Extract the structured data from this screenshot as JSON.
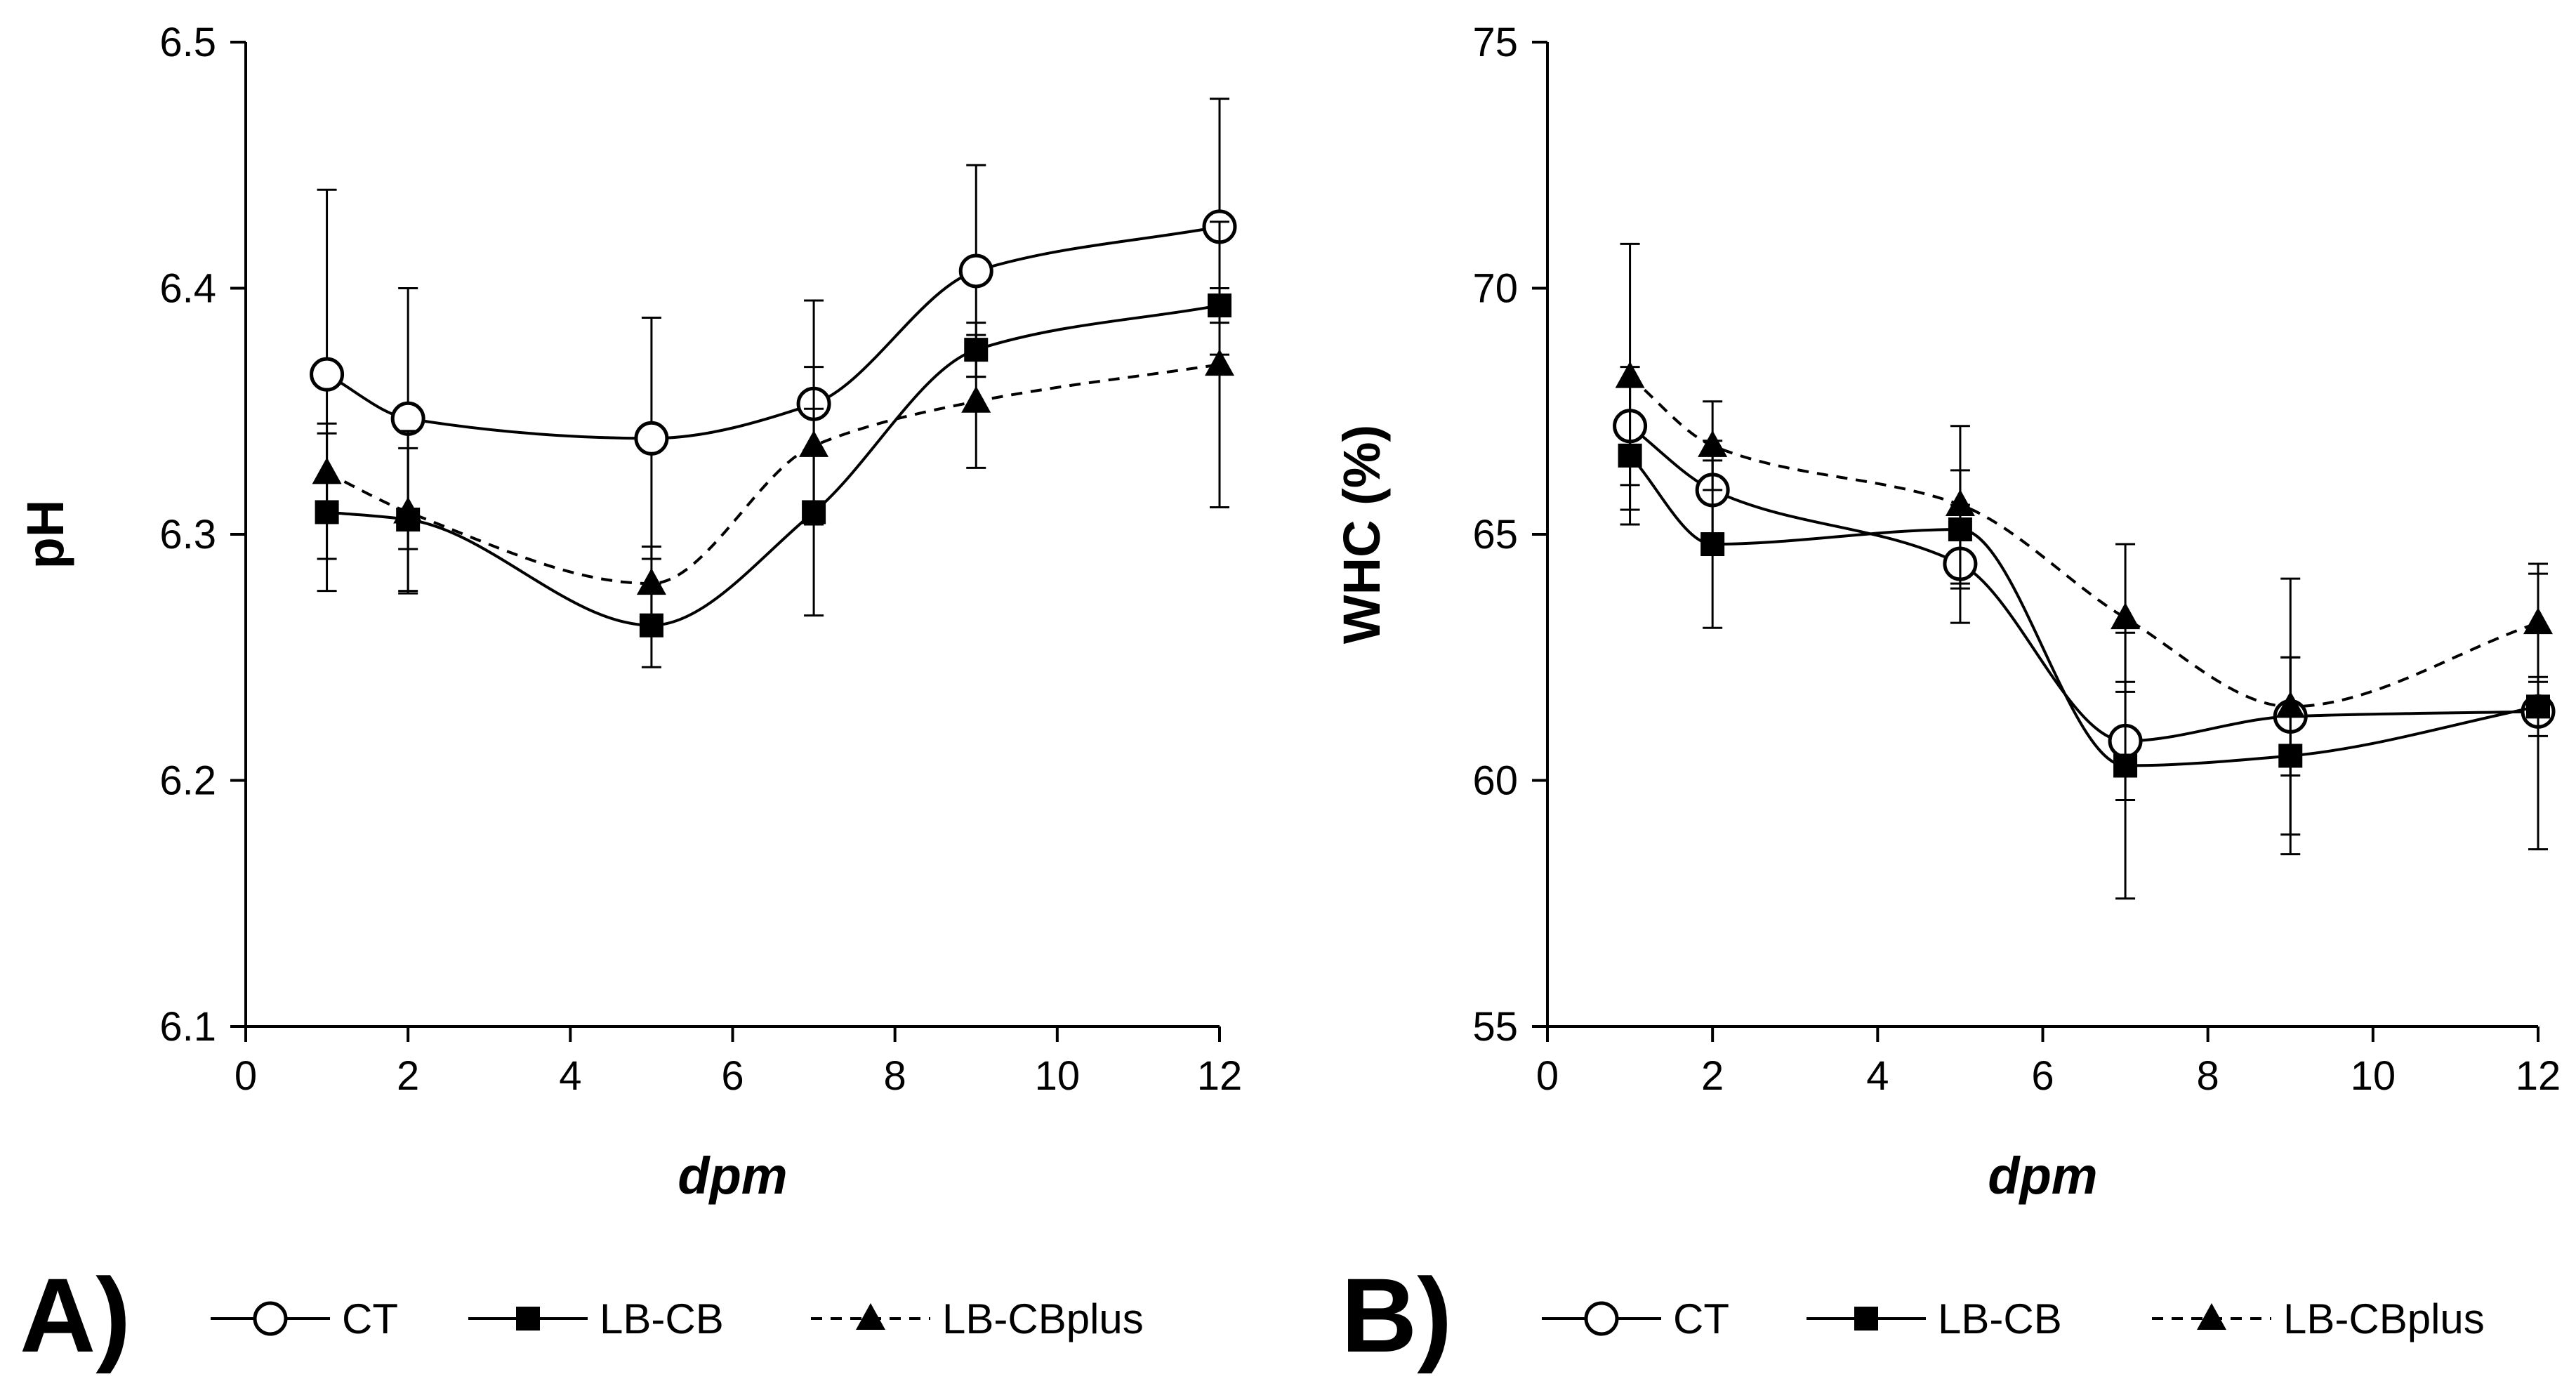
{
  "chart_data": [
    {
      "type": "line",
      "panel_label": "A)",
      "xlabel": "dpm",
      "ylabel": "pH",
      "xlim": [
        0,
        12
      ],
      "ylim": [
        6.1,
        6.5
      ],
      "xticks": [
        0,
        2,
        4,
        6,
        8,
        10,
        12
      ],
      "yticks": [
        6.1,
        6.2,
        6.3,
        6.4,
        6.5
      ],
      "x_tick_labels": [
        "0",
        "2",
        "4",
        "6",
        "8",
        "10",
        "12"
      ],
      "y_tick_labels": [
        "6.1",
        "6.2",
        "6.3",
        "6.4",
        "6.5"
      ],
      "grid": false,
      "legend_position": "bottom",
      "series": [
        {
          "name": "CT",
          "marker": "circle-open",
          "line": "solid",
          "x": [
            1,
            2,
            5,
            7,
            9,
            12
          ],
          "values": [
            6.365,
            6.347,
            6.339,
            6.353,
            6.407,
            6.425
          ],
          "error": [
            0.075,
            0.053,
            0.049,
            0.042,
            0.043,
            0.052
          ]
        },
        {
          "name": "LB-CB",
          "marker": "square",
          "line": "solid",
          "x": [
            1,
            2,
            5,
            7,
            9,
            12
          ],
          "values": [
            6.309,
            6.306,
            6.263,
            6.309,
            6.375,
            6.393
          ],
          "error": [
            0.032,
            0.029,
            0.017,
            0.042,
            0.011,
            0.007
          ]
        },
        {
          "name": "LB-CBplus",
          "marker": "triangle",
          "line": "dashed",
          "x": [
            1,
            2,
            5,
            7,
            9,
            12
          ],
          "values": [
            6.325,
            6.309,
            6.28,
            6.336,
            6.354,
            6.369
          ],
          "error": [
            0.02,
            0.033,
            0.015,
            0.032,
            0.027,
            0.058
          ]
        }
      ]
    },
    {
      "type": "line",
      "panel_label": "B)",
      "xlabel": "dpm",
      "ylabel": "WHC (%)",
      "xlim": [
        0,
        12
      ],
      "ylim": [
        55,
        75
      ],
      "xticks": [
        0,
        2,
        4,
        6,
        8,
        10,
        12
      ],
      "yticks": [
        55,
        60,
        65,
        70,
        75
      ],
      "x_tick_labels": [
        "0",
        "2",
        "4",
        "6",
        "8",
        "10",
        "12"
      ],
      "y_tick_labels": [
        "55",
        "60",
        "65",
        "70",
        "75"
      ],
      "grid": false,
      "legend_position": "bottom",
      "series": [
        {
          "name": "CT",
          "marker": "circle-open",
          "line": "solid",
          "x": [
            1,
            2,
            5,
            7,
            9,
            12
          ],
          "values": [
            67.2,
            65.9,
            64.4,
            60.8,
            61.3,
            61.4
          ],
          "error": [
            1.2,
            1.0,
            1.2,
            1.2,
            1.2,
            2.8
          ]
        },
        {
          "name": "LB-CB",
          "marker": "square",
          "line": "solid",
          "x": [
            1,
            2,
            5,
            7,
            9,
            12
          ],
          "values": [
            66.6,
            64.8,
            65.1,
            60.3,
            60.5,
            61.5
          ],
          "error": [
            1.4,
            1.7,
            1.2,
            2.7,
            2.0,
            0.6
          ]
        },
        {
          "name": "LB-CBplus",
          "marker": "triangle",
          "line": "dashed",
          "x": [
            1,
            2,
            5,
            7,
            9,
            12
          ],
          "values": [
            68.2,
            66.8,
            65.6,
            63.3,
            61.5,
            63.2
          ],
          "error": [
            2.7,
            0.9,
            1.6,
            1.5,
            2.6,
            1.2
          ]
        }
      ]
    }
  ]
}
